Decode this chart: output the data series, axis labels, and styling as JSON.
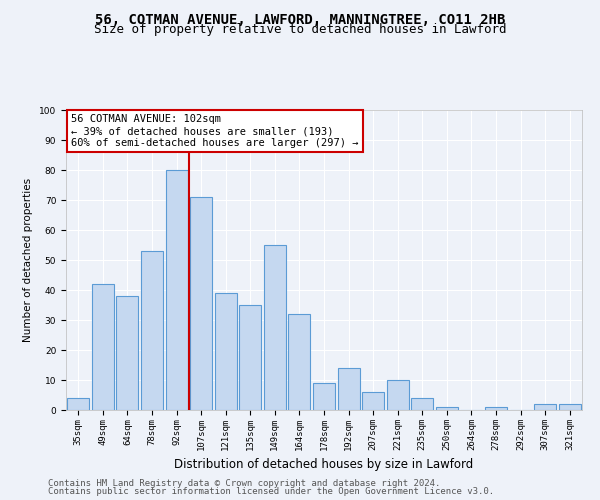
{
  "title": "56, COTMAN AVENUE, LAWFORD, MANNINGTREE, CO11 2HB",
  "subtitle": "Size of property relative to detached houses in Lawford",
  "xlabel": "Distribution of detached houses by size in Lawford",
  "ylabel": "Number of detached properties",
  "categories": [
    "35sqm",
    "49sqm",
    "64sqm",
    "78sqm",
    "92sqm",
    "107sqm",
    "121sqm",
    "135sqm",
    "149sqm",
    "164sqm",
    "178sqm",
    "192sqm",
    "207sqm",
    "221sqm",
    "235sqm",
    "250sqm",
    "264sqm",
    "278sqm",
    "292sqm",
    "307sqm",
    "321sqm"
  ],
  "values": [
    4,
    42,
    38,
    53,
    80,
    71,
    39,
    35,
    55,
    32,
    9,
    14,
    6,
    10,
    4,
    1,
    0,
    1,
    0,
    2,
    2
  ],
  "bar_color": "#c5d8f0",
  "bar_edge_color": "#5b9bd5",
  "highlight_line_index": 5,
  "annotation_title": "56 COTMAN AVENUE: 102sqm",
  "annotation_line1": "← 39% of detached houses are smaller (193)",
  "annotation_line2": "60% of semi-detached houses are larger (297) →",
  "annotation_box_color": "#ffffff",
  "annotation_box_edge": "#cc0000",
  "vline_color": "#cc0000",
  "background_color": "#eef2f9",
  "grid_color": "#ffffff",
  "ylim": [
    0,
    100
  ],
  "yticks": [
    0,
    10,
    20,
    30,
    40,
    50,
    60,
    70,
    80,
    90,
    100
  ],
  "footer1": "Contains HM Land Registry data © Crown copyright and database right 2024.",
  "footer2": "Contains public sector information licensed under the Open Government Licence v3.0.",
  "title_fontsize": 10,
  "subtitle_fontsize": 9,
  "xlabel_fontsize": 8.5,
  "ylabel_fontsize": 7.5,
  "tick_fontsize": 6.5,
  "footer_fontsize": 6.5,
  "ann_fontsize": 7.5
}
